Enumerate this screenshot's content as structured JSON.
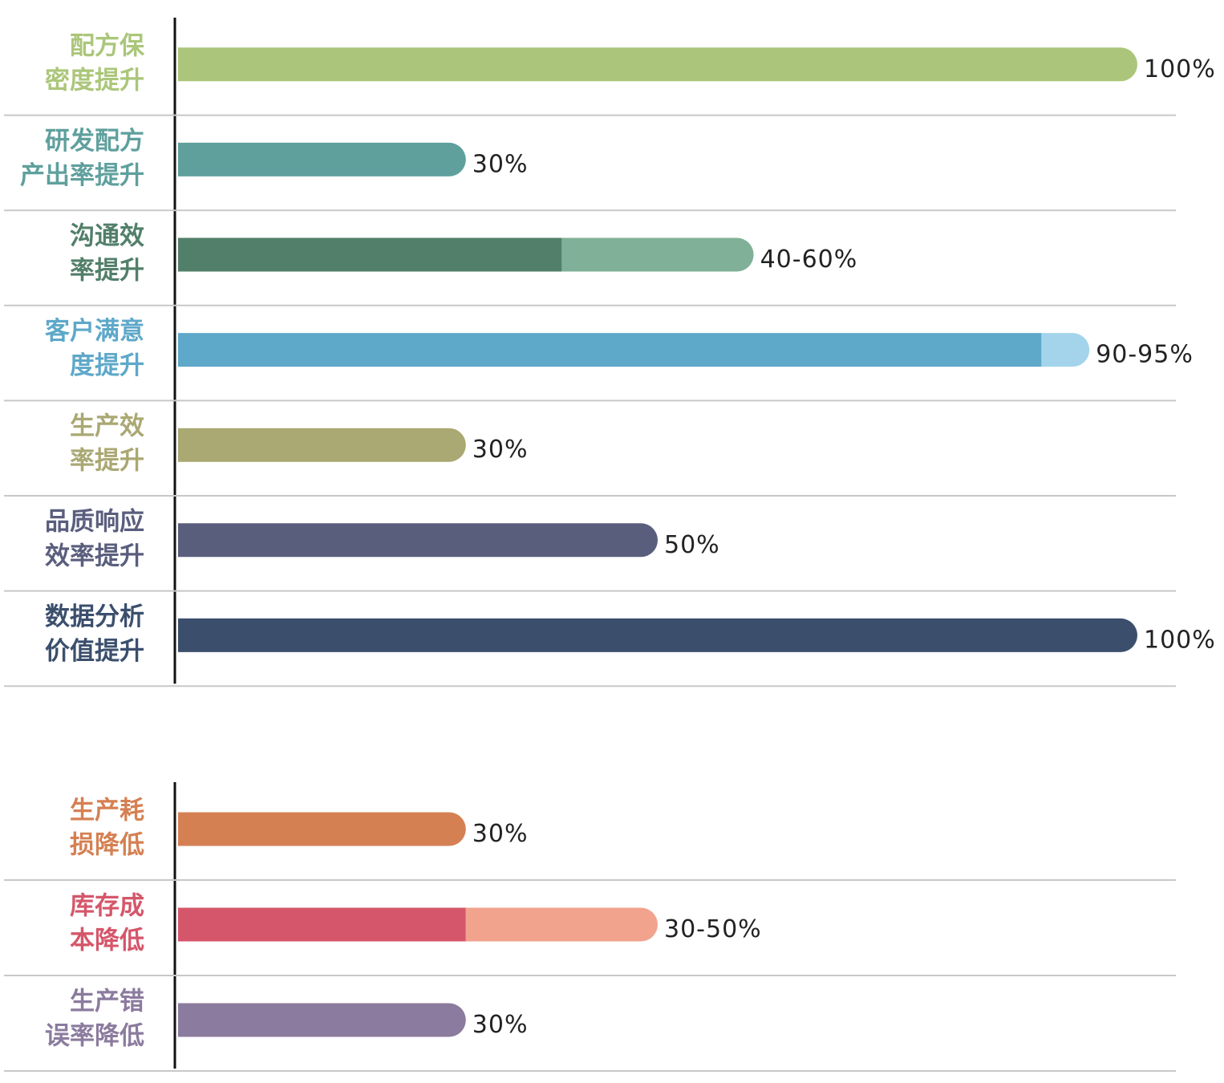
{
  "chart_data": [
    {
      "type": "range-bar",
      "categories": [
        [
          "配方保",
          "密度提升"
        ],
        [
          "研发配方",
          "产出率提升"
        ],
        [
          "沟通效",
          "率提升"
        ],
        [
          "客户满意",
          "度提升"
        ],
        [
          "生产效",
          "率提升"
        ],
        [
          "品质响应",
          "效率提升"
        ],
        [
          "数据分析",
          "价值提升"
        ]
      ],
      "values": [
        100,
        30,
        40,
        90,
        30,
        50,
        100
      ],
      "values_high": [
        null,
        null,
        60,
        95,
        null,
        null,
        null
      ],
      "value_labels": [
        "100%",
        "30%",
        "40-60%",
        "90-95%",
        "30%",
        "50%",
        "100%"
      ],
      "colors": [
        "#abc67a",
        "#5fa09d",
        "#527f6a",
        "#5ea8c9",
        "#aaa873",
        "#5a5e7d",
        "#3b4f6d"
      ],
      "high_colors": [
        null,
        null,
        "#80b097",
        "#a3d4ec",
        null,
        null,
        null
      ],
      "xlim": [
        0,
        100
      ]
    },
    {
      "type": "range-bar",
      "categories": [
        [
          "生产耗",
          "损降低"
        ],
        [
          "库存成",
          "本降低"
        ],
        [
          "生产错",
          "误率降低"
        ]
      ],
      "values": [
        30,
        30,
        30
      ],
      "values_high": [
        null,
        50,
        null
      ],
      "value_labels": [
        "30%",
        "30-50%",
        "30%"
      ],
      "colors": [
        "#d58053",
        "#d5566a",
        "#8b7b9e"
      ],
      "high_colors": [
        null,
        "#f1a38e",
        null
      ],
      "xlim": [
        0,
        100
      ]
    }
  ]
}
